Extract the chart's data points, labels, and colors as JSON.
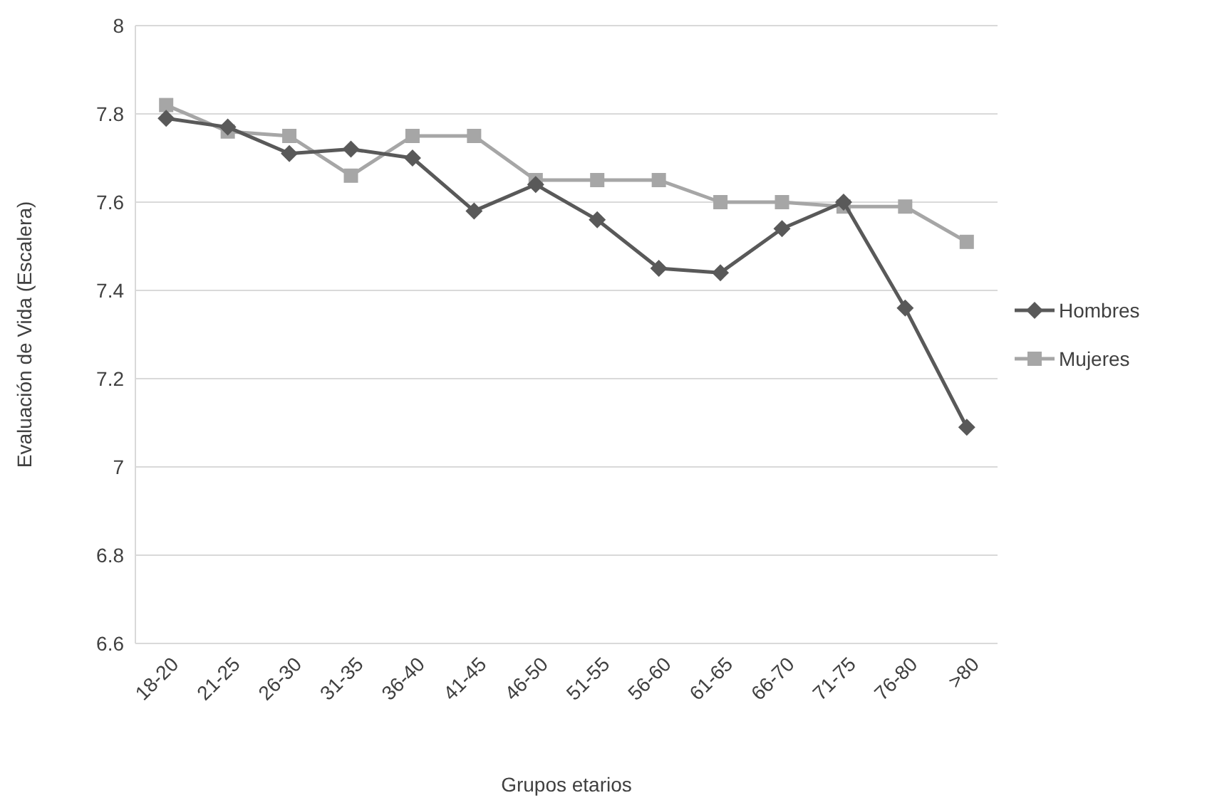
{
  "chart_data": {
    "type": "line",
    "xlabel": "Grupos etarios",
    "ylabel": "Evaluación de Vida (Escalera)",
    "categories": [
      "18-20",
      "21-25",
      "26-30",
      "31-35",
      "36-40",
      "41-45",
      "46-50",
      "51-55",
      "56-60",
      "61-65",
      "66-70",
      "71-75",
      "76-80",
      ">80"
    ],
    "series": [
      {
        "name": "Hombres",
        "color": "#595959",
        "marker": "diamond",
        "values": [
          7.79,
          7.77,
          7.71,
          7.72,
          7.7,
          7.58,
          7.64,
          7.56,
          7.45,
          7.44,
          7.54,
          7.6,
          7.36,
          7.09
        ]
      },
      {
        "name": "Mujeres",
        "color": "#a6a6a6",
        "marker": "square",
        "values": [
          7.82,
          7.76,
          7.75,
          7.66,
          7.75,
          7.75,
          7.65,
          7.65,
          7.65,
          7.6,
          7.6,
          7.59,
          7.59,
          7.51
        ]
      }
    ],
    "ylim": [
      6.6,
      8
    ],
    "yticks": [
      6.6,
      6.8,
      7,
      7.2,
      7.4,
      7.6,
      7.8,
      8
    ],
    "grid": "y",
    "legend": "right"
  }
}
